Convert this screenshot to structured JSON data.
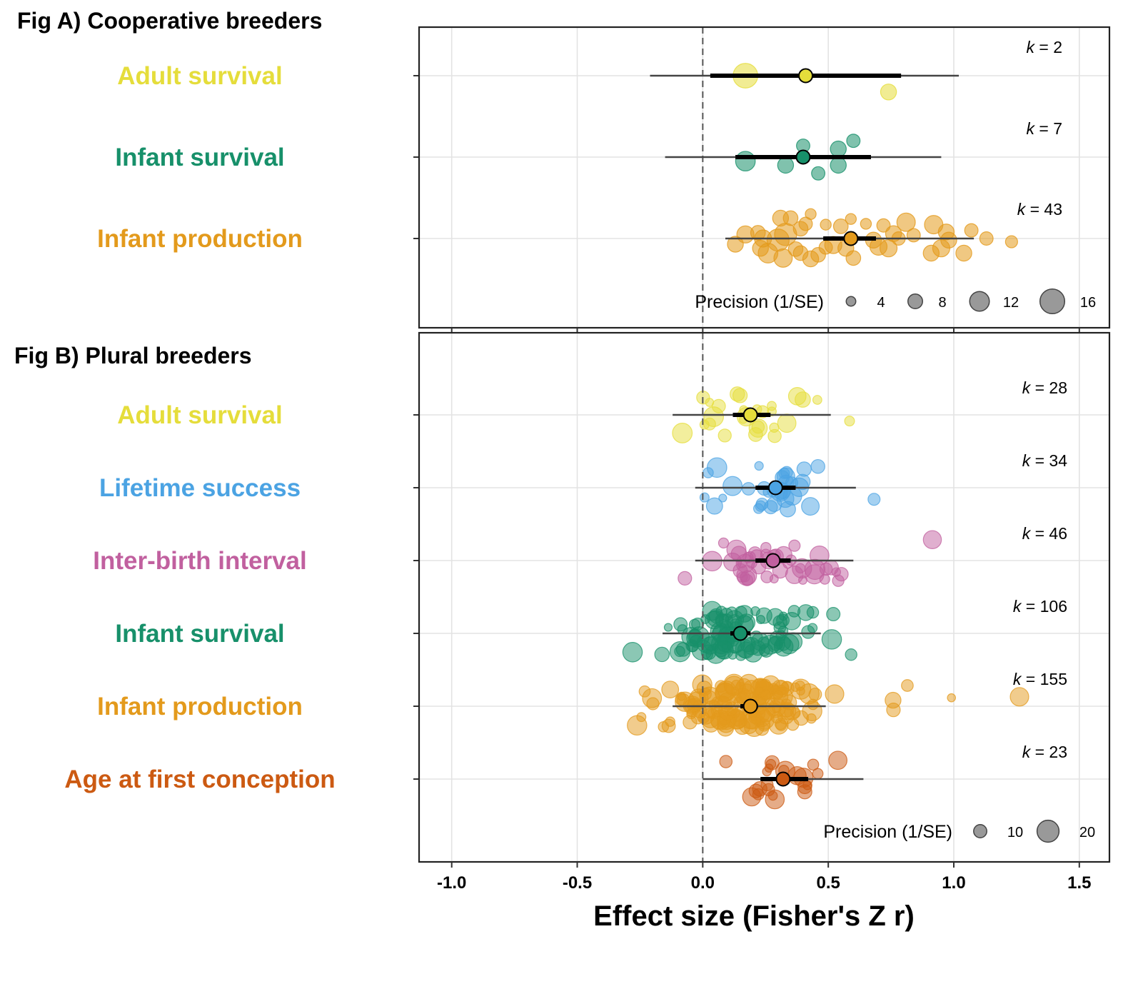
{
  "chart_data": [
    {
      "type": "scatter",
      "panel_title": "Fig A) Cooperative breeders",
      "xlabel": "Effect size (Fisher's Z r)",
      "xlim": [
        -1.13,
        1.62
      ],
      "x_ticks": [
        -1.0,
        -0.5,
        0.0,
        0.5,
        1.0,
        1.5
      ],
      "x_tick_labels": [
        "-1.0",
        "-0.5",
        "0.0",
        "0.5",
        "1.0",
        "1.5"
      ],
      "reference_line": 0,
      "grid": true,
      "legend": {
        "title": "Precision (1/SE)",
        "placement": "bottom-right",
        "values": [
          4,
          8,
          12,
          16
        ],
        "labels": [
          "4",
          "8",
          "12",
          "16"
        ]
      },
      "rows": [
        {
          "label": "Adult survival",
          "color": "#e5dd3b",
          "k": 2,
          "k_label": "k = 2",
          "estimate": 0.41,
          "ci": [
            0.03,
            0.79
          ],
          "pi": [
            -0.21,
            1.02
          ],
          "points": [
            {
              "x": 0.17,
              "jitter": 0.0,
              "precision": 16
            },
            {
              "x": 0.74,
              "jitter": -0.2,
              "precision": 9
            }
          ]
        },
        {
          "label": "Infant survival",
          "color": "#17906a",
          "k": 7,
          "k_label": "k = 7",
          "estimate": 0.4,
          "ci": [
            0.13,
            0.67
          ],
          "pi": [
            -0.15,
            0.95
          ],
          "points": [
            {
              "x": 0.17,
              "jitter": -0.05,
              "precision": 12
            },
            {
              "x": 0.33,
              "jitter": -0.1,
              "precision": 9
            },
            {
              "x": 0.4,
              "jitter": 0.14,
              "precision": 7
            },
            {
              "x": 0.46,
              "jitter": -0.2,
              "precision": 7
            },
            {
              "x": 0.54,
              "jitter": 0.1,
              "precision": 9
            },
            {
              "x": 0.54,
              "jitter": -0.1,
              "precision": 9
            },
            {
              "x": 0.6,
              "jitter": 0.2,
              "precision": 7
            }
          ]
        },
        {
          "label": "Infant production",
          "color": "#e39a1c",
          "k": 43,
          "k_label": "k = 43",
          "estimate": 0.59,
          "ci": [
            0.48,
            0.69
          ],
          "pi": [
            0.09,
            1.08
          ],
          "points": [
            {
              "x": 0.13,
              "jitter": -0.07,
              "precision": 9
            },
            {
              "x": 0.17,
              "jitter": 0.05,
              "precision": 10
            },
            {
              "x": 0.22,
              "jitter": 0.07,
              "precision": 8
            },
            {
              "x": 0.23,
              "jitter": -0.12,
              "precision": 9
            },
            {
              "x": 0.26,
              "jitter": -0.18,
              "precision": 12
            },
            {
              "x": 0.24,
              "jitter": 0.0,
              "precision": 10
            },
            {
              "x": 0.3,
              "jitter": -0.02,
              "precision": 14
            },
            {
              "x": 0.32,
              "jitter": -0.24,
              "precision": 11
            },
            {
              "x": 0.31,
              "jitter": 0.25,
              "precision": 9
            },
            {
              "x": 0.33,
              "jitter": 0.05,
              "precision": 14
            },
            {
              "x": 0.35,
              "jitter": 0.25,
              "precision": 8
            },
            {
              "x": 0.37,
              "jitter": -0.13,
              "precision": 8
            },
            {
              "x": 0.39,
              "jitter": 0.12,
              "precision": 8
            },
            {
              "x": 0.39,
              "jitter": -0.18,
              "precision": 8
            },
            {
              "x": 0.41,
              "jitter": 0.18,
              "precision": 7
            },
            {
              "x": 0.43,
              "jitter": -0.25,
              "precision": 9
            },
            {
              "x": 0.43,
              "jitter": 0.3,
              "precision": 5
            },
            {
              "x": 0.46,
              "jitter": -0.2,
              "precision": 8
            },
            {
              "x": 0.49,
              "jitter": 0.17,
              "precision": 5
            },
            {
              "x": 0.49,
              "jitter": -0.11,
              "precision": 7
            },
            {
              "x": 0.52,
              "jitter": -0.08,
              "precision": 10
            },
            {
              "x": 0.55,
              "jitter": 0.15,
              "precision": 8
            },
            {
              "x": 0.57,
              "jitter": -0.12,
              "precision": 9
            },
            {
              "x": 0.59,
              "jitter": 0.24,
              "precision": 5
            },
            {
              "x": 0.6,
              "jitter": -0.24,
              "precision": 8
            },
            {
              "x": 0.65,
              "jitter": 0.18,
              "precision": 5
            },
            {
              "x": 0.68,
              "jitter": -0.02,
              "precision": 9
            },
            {
              "x": 0.7,
              "jitter": -0.1,
              "precision": 10
            },
            {
              "x": 0.74,
              "jitter": -0.12,
              "precision": 10
            },
            {
              "x": 0.72,
              "jitter": 0.16,
              "precision": 7
            },
            {
              "x": 0.76,
              "jitter": 0.06,
              "precision": 9
            },
            {
              "x": 0.78,
              "jitter": 0.0,
              "precision": 7
            },
            {
              "x": 0.81,
              "jitter": 0.2,
              "precision": 11
            },
            {
              "x": 0.84,
              "jitter": 0.04,
              "precision": 7
            },
            {
              "x": 0.91,
              "jitter": -0.18,
              "precision": 9
            },
            {
              "x": 0.92,
              "jitter": 0.17,
              "precision": 11
            },
            {
              "x": 0.95,
              "jitter": -0.12,
              "precision": 10
            },
            {
              "x": 0.98,
              "jitter": -0.02,
              "precision": 9
            },
            {
              "x": 0.97,
              "jitter": 0.08,
              "precision": 9
            },
            {
              "x": 1.04,
              "jitter": -0.18,
              "precision": 9
            },
            {
              "x": 1.07,
              "jitter": 0.1,
              "precision": 7
            },
            {
              "x": 1.13,
              "jitter": 0.0,
              "precision": 7
            },
            {
              "x": 1.23,
              "jitter": -0.04,
              "precision": 6
            }
          ]
        }
      ]
    },
    {
      "type": "scatter",
      "panel_title": "Fig B) Plural breeders",
      "xlabel": "Effect size (Fisher's Z r)",
      "xlim": [
        -1.13,
        1.62
      ],
      "x_ticks": [
        -1.0,
        -0.5,
        0.0,
        0.5,
        1.0,
        1.5
      ],
      "x_tick_labels": [
        "-1.0",
        "-0.5",
        "0.0",
        "0.5",
        "1.0",
        "1.5"
      ],
      "reference_line": 0,
      "grid": true,
      "legend": {
        "title": "Precision (1/SE)",
        "placement": "bottom-right",
        "values": [
          10,
          20
        ],
        "labels": [
          "10",
          "20"
        ]
      },
      "rows": [
        {
          "label": "Adult survival",
          "color": "#e5dd3b",
          "k": 28,
          "k_label": "k = 28",
          "estimate": 0.19,
          "ci": [
            0.12,
            0.27
          ],
          "pi": [
            -0.12,
            0.51
          ]
        },
        {
          "label": "Lifetime success",
          "color": "#4ba3e3",
          "k": 34,
          "k_label": "k = 34",
          "estimate": 0.29,
          "ci": [
            0.21,
            0.37
          ],
          "pi": [
            -0.03,
            0.61
          ]
        },
        {
          "label": "Inter-birth interval",
          "color": "#c1609f",
          "k": 46,
          "k_label": "k = 46",
          "estimate": 0.28,
          "ci": [
            0.21,
            0.35
          ],
          "pi": [
            -0.03,
            0.6
          ]
        },
        {
          "label": "Infant survival",
          "color": "#17906a",
          "k": 106,
          "k_label": "k = 106",
          "estimate": 0.15,
          "ci": [
            0.11,
            0.19
          ],
          "pi": [
            -0.16,
            0.47
          ]
        },
        {
          "label": "Infant production",
          "color": "#e39a1c",
          "k": 155,
          "k_label": "k = 155",
          "estimate": 0.19,
          "ci": [
            0.15,
            0.22
          ],
          "pi": [
            -0.12,
            0.49
          ]
        },
        {
          "label": "Age at first conception",
          "color": "#cc5a12",
          "k": 23,
          "k_label": "k = 23",
          "estimate": 0.32,
          "ci": [
            0.23,
            0.42
          ],
          "pi": [
            0.0,
            0.64
          ]
        }
      ]
    }
  ]
}
